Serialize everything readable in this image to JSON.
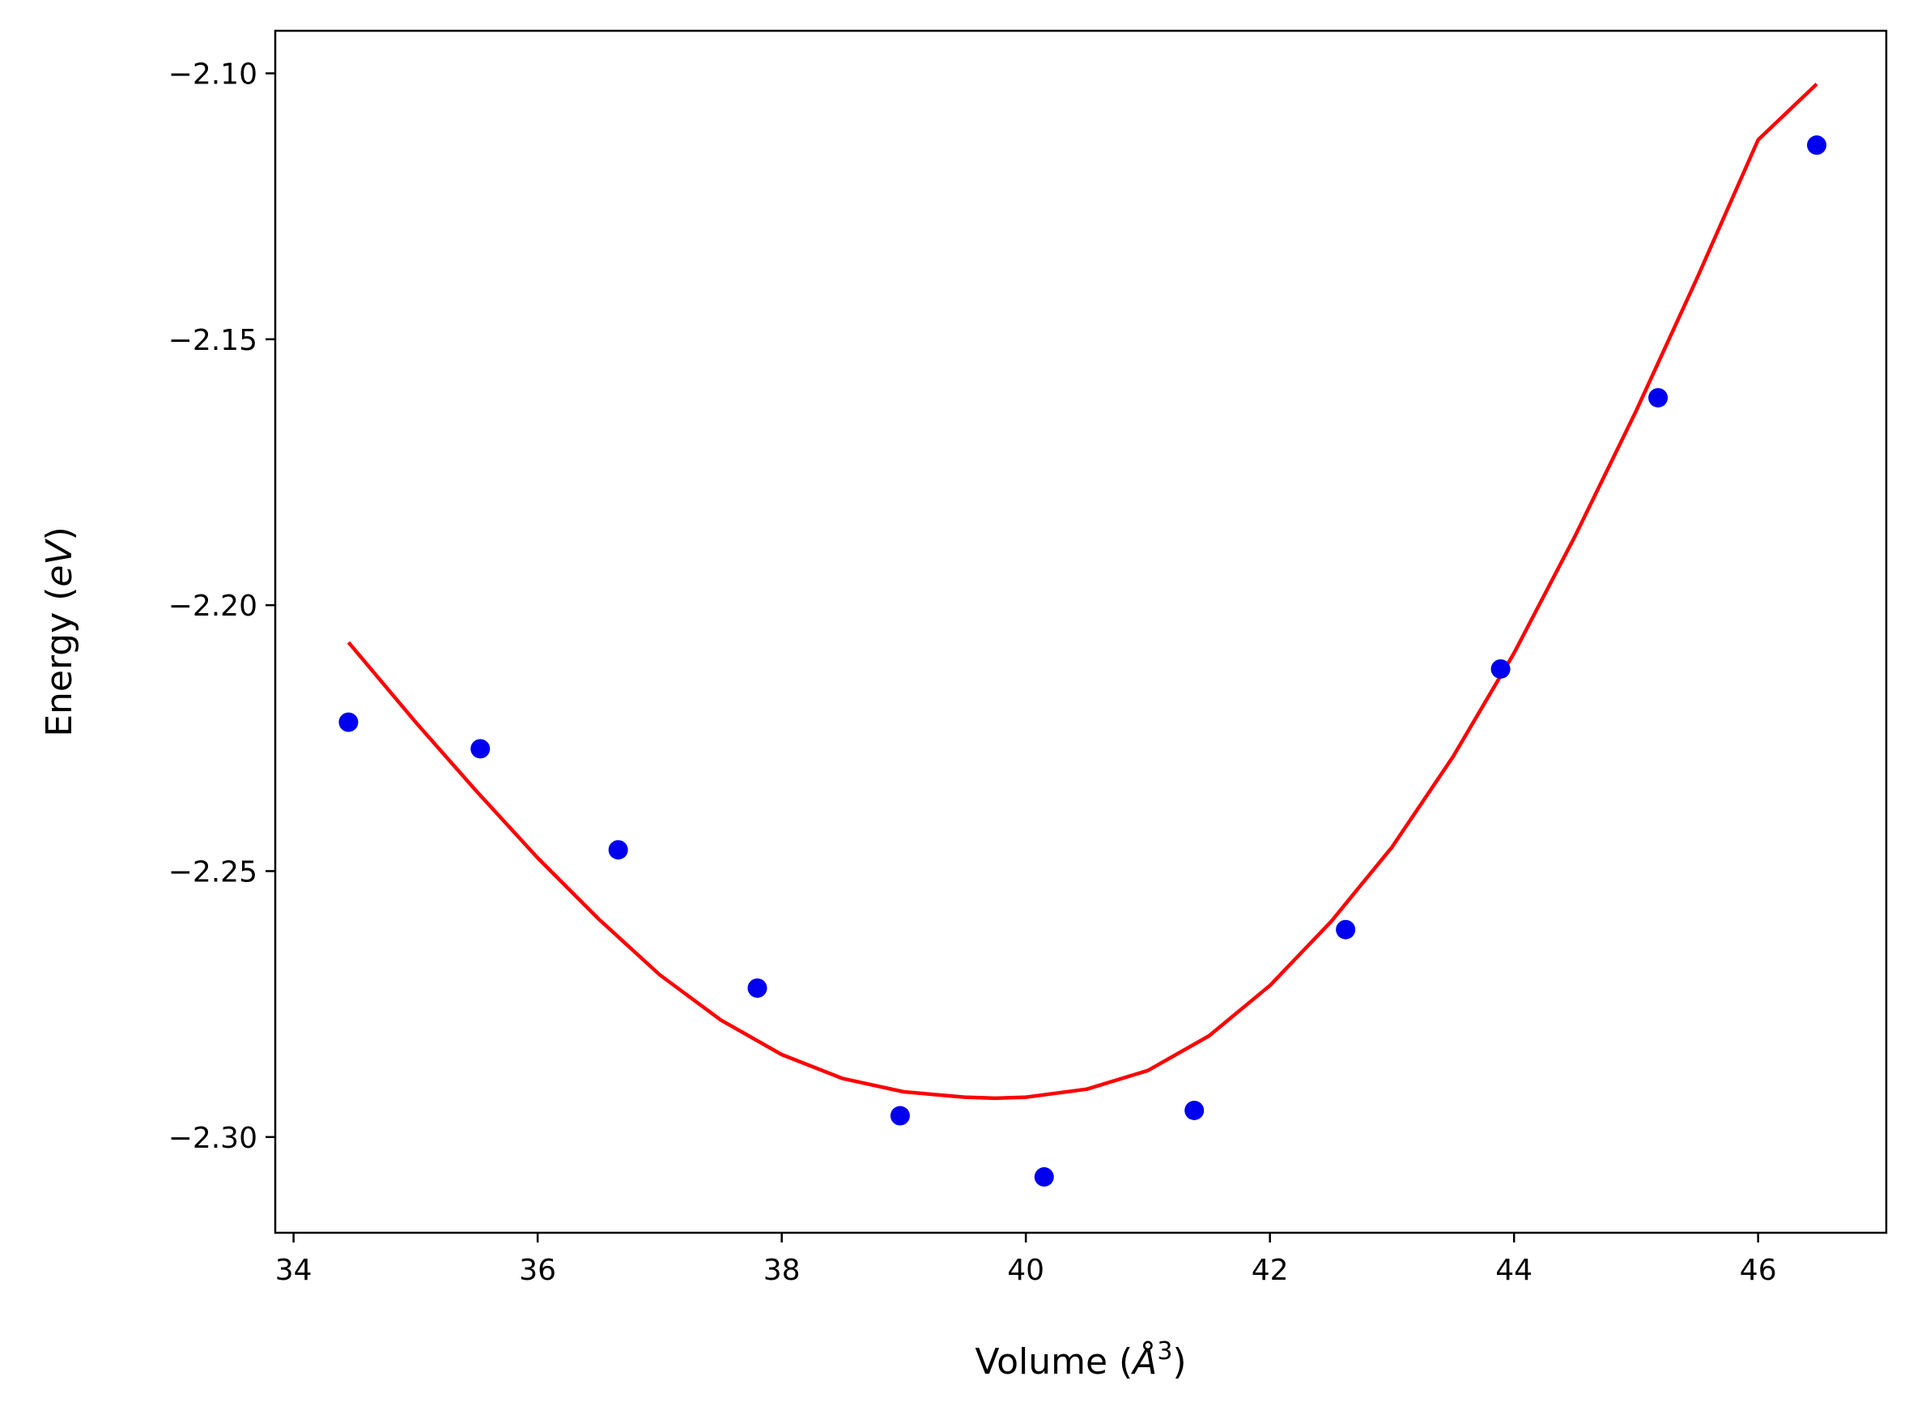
{
  "chart_data": {
    "type": "scatter",
    "title": "",
    "xlabel": {
      "prefix": "Volume (",
      "unit": "Å",
      "exponent": "3",
      "suffix": ")"
    },
    "ylabel": {
      "prefix": "Energy (",
      "unit": "eV",
      "suffix": ")"
    },
    "xlim": [
      33.85,
      47.05
    ],
    "ylim": [
      -2.318,
      -2.092
    ],
    "x_ticks": [
      {
        "value": 34,
        "label": "34"
      },
      {
        "value": 36,
        "label": "36"
      },
      {
        "value": 38,
        "label": "38"
      },
      {
        "value": 40,
        "label": "40"
      },
      {
        "value": 42,
        "label": "42"
      },
      {
        "value": 44,
        "label": "44"
      },
      {
        "value": 46,
        "label": "46"
      }
    ],
    "y_ticks": [
      {
        "value": -2.1,
        "label": "−2.10"
      },
      {
        "value": -2.15,
        "label": "−2.15"
      },
      {
        "value": -2.2,
        "label": "−2.20"
      },
      {
        "value": -2.25,
        "label": "−2.25"
      },
      {
        "value": -2.3,
        "label": "−2.30"
      }
    ],
    "grid": false,
    "series": [
      {
        "kind": "scatter",
        "color": "#0000ee",
        "points": [
          {
            "x": 34.45,
            "y": -2.222
          },
          {
            "x": 35.53,
            "y": -2.227
          },
          {
            "x": 36.66,
            "y": -2.246
          },
          {
            "x": 37.8,
            "y": -2.272
          },
          {
            "x": 38.97,
            "y": -2.296
          },
          {
            "x": 40.15,
            "y": -2.3075
          },
          {
            "x": 41.38,
            "y": -2.295
          },
          {
            "x": 42.62,
            "y": -2.261
          },
          {
            "x": 43.89,
            "y": -2.212
          },
          {
            "x": 45.18,
            "y": -2.161
          },
          {
            "x": 46.48,
            "y": -2.1135
          }
        ]
      },
      {
        "kind": "line",
        "color": "#ff0000",
        "points": [
          {
            "x": 34.45,
            "y": -2.207
          },
          {
            "x": 35.0,
            "y": -2.222
          },
          {
            "x": 35.5,
            "y": -2.235
          },
          {
            "x": 36.0,
            "y": -2.2475
          },
          {
            "x": 36.5,
            "y": -2.259
          },
          {
            "x": 37.0,
            "y": -2.2695
          },
          {
            "x": 37.5,
            "y": -2.278
          },
          {
            "x": 38.0,
            "y": -2.2845
          },
          {
            "x": 38.5,
            "y": -2.289
          },
          {
            "x": 39.0,
            "y": -2.2915
          },
          {
            "x": 39.5,
            "y": -2.2925
          },
          {
            "x": 39.75,
            "y": -2.2927
          },
          {
            "x": 40.0,
            "y": -2.2925
          },
          {
            "x": 40.5,
            "y": -2.291
          },
          {
            "x": 41.0,
            "y": -2.2875
          },
          {
            "x": 41.5,
            "y": -2.281
          },
          {
            "x": 42.0,
            "y": -2.2715
          },
          {
            "x": 42.5,
            "y": -2.2595
          },
          {
            "x": 43.0,
            "y": -2.2455
          },
          {
            "x": 43.5,
            "y": -2.2285
          },
          {
            "x": 44.0,
            "y": -2.209
          },
          {
            "x": 44.5,
            "y": -2.187
          },
          {
            "x": 45.0,
            "y": -2.1635
          },
          {
            "x": 45.5,
            "y": -2.1385
          },
          {
            "x": 46.0,
            "y": -2.1125
          },
          {
            "x": 46.48,
            "y": -2.102
          }
        ]
      }
    ]
  }
}
